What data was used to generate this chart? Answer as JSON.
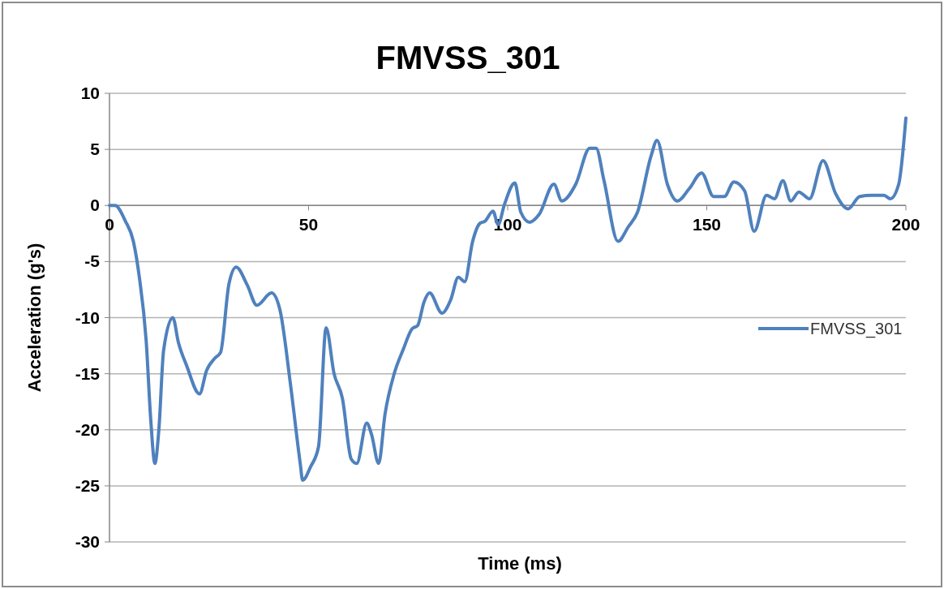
{
  "chart_data": {
    "type": "line",
    "title": "FMVSS_301",
    "xlabel": "Time (ms)",
    "ylabel": "Acceleration (g's)",
    "x": [
      0,
      1.4,
      4,
      6,
      7.5,
      9.2,
      10.4,
      11.4,
      12.4,
      13.6,
      15.9,
      17.3,
      19.4,
      22.6,
      24.4,
      26.5,
      27.9,
      30,
      31.8,
      34.6,
      37,
      40.7,
      42.8,
      45.4,
      47.9,
      48.5,
      50.5,
      52.5,
      54.4,
      56.4,
      58.5,
      60.7,
      62.1,
      64.6,
      65.8,
      67.6,
      69.2,
      71.5,
      73.7,
      76,
      77.4,
      79,
      80.4,
      83.5,
      85.7,
      87.6,
      89.2,
      91.2,
      93,
      94.3,
      96.3,
      97.6,
      99.2,
      101.8,
      103.3,
      105.5,
      107.9,
      111.6,
      113.6,
      117.1,
      120.6,
      122.2,
      124.2,
      127.7,
      130.3,
      132.6,
      136,
      137.5,
      140.1,
      142.6,
      145.6,
      148.7,
      151.7,
      154.4,
      156.8,
      159.5,
      161.9,
      165,
      167,
      169.1,
      171.1,
      173.1,
      175.8,
      179.2,
      182.3,
      185.5,
      188.4,
      191.4,
      194.5,
      196.1,
      198.2,
      200
    ],
    "series": [
      {
        "name": "FMVSS_301",
        "color": "#4f81bd",
        "values": [
          0,
          0,
          -1.4,
          -3.2,
          -6.4,
          -12,
          -19.3,
          -23,
          -20,
          -12.9,
          -10,
          -12.2,
          -14.3,
          -16.8,
          -14.7,
          -13.6,
          -13.1,
          -7,
          -5.5,
          -7.1,
          -8.9,
          -7.8,
          -9.3,
          -15.8,
          -23,
          -24.5,
          -23.3,
          -21.5,
          -10.9,
          -15,
          -17.2,
          -22.6,
          -23,
          -19.4,
          -20.4,
          -23,
          -18.6,
          -15,
          -12.9,
          -11,
          -10.7,
          -8.6,
          -7.8,
          -9.6,
          -8.4,
          -6.4,
          -6.8,
          -3.2,
          -1.6,
          -1.4,
          -0.5,
          -1.7,
          0.1,
          2,
          -0.6,
          -1.5,
          -0.8,
          1.9,
          0.4,
          1.9,
          5.1,
          5.1,
          2.2,
          -3.2,
          -1.9,
          -0.6,
          4.4,
          5.8,
          1.9,
          0.4,
          1.5,
          2.9,
          0.8,
          0.8,
          2.1,
          1.3,
          -2.3,
          0.9,
          0.6,
          2.2,
          0.4,
          1.2,
          0.6,
          4,
          1.1,
          -0.3,
          0.8,
          0.9,
          0.9,
          0.6,
          1.9,
          7.8
        ]
      }
    ],
    "xlim": [
      0,
      200
    ],
    "xticks": [
      0,
      50,
      100,
      150,
      200
    ],
    "ylim": [
      -30,
      10
    ],
    "yticks": [
      -30,
      -25,
      -20,
      -15,
      -10,
      -5,
      0,
      5,
      10
    ],
    "grid": "y",
    "legend": "right",
    "line_style": "solid",
    "marker": "none"
  }
}
